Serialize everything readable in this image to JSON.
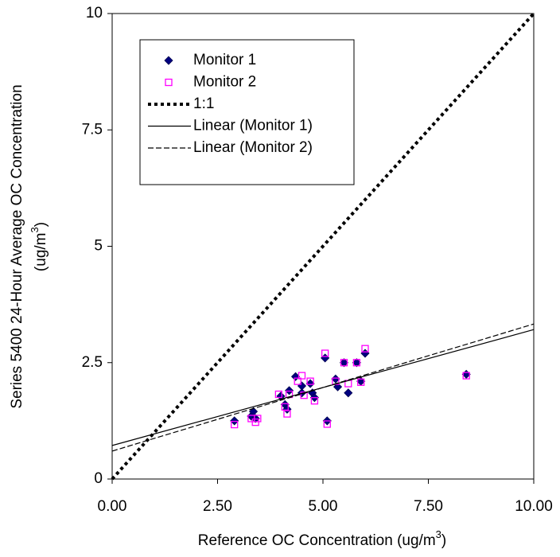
{
  "chart_data": {
    "type": "scatter",
    "x_label": [
      "Reference OC Concentration (ug/m",
      "3",
      ")"
    ],
    "y_label": [
      "Series 5400 24-Hour Average OC Concentration",
      "(ug/m",
      "3",
      ")"
    ],
    "xlim": [
      0,
      10
    ],
    "ylim": [
      0,
      10
    ],
    "xticks": [
      {
        "value": 0,
        "label": "0.00"
      },
      {
        "value": 2.5,
        "label": "2.50"
      },
      {
        "value": 5,
        "label": "5.00"
      },
      {
        "value": 7.5,
        "label": "7.50"
      },
      {
        "value": 10,
        "label": "10.00"
      }
    ],
    "yticks": [
      0,
      2.5,
      5,
      7.5,
      10
    ],
    "series": [
      {
        "name": "Monitor 1",
        "color": "#000080",
        "mark": "diamond",
        "x": [
          2.9,
          3.3,
          3.35,
          3.4,
          4.0,
          4.1,
          4.15,
          4.2,
          4.35,
          4.5,
          4.5,
          4.7,
          4.75,
          4.8,
          5.05,
          5.1,
          5.3,
          5.35,
          5.5,
          5.6,
          5.8,
          5.9,
          6.0,
          8.4
        ],
        "values": [
          1.25,
          1.35,
          1.45,
          1.3,
          1.78,
          1.6,
          1.5,
          1.9,
          2.2,
          2.0,
          1.85,
          2.05,
          1.85,
          1.75,
          2.6,
          1.25,
          2.15,
          1.98,
          2.5,
          1.85,
          2.5,
          2.1,
          2.7,
          2.25
        ]
      },
      {
        "name": "Monitor 2",
        "color": "#ff00ff",
        "mark": "square",
        "x": [
          2.9,
          3.3,
          3.4,
          3.45,
          3.95,
          4.1,
          4.15,
          4.2,
          4.4,
          4.5,
          4.55,
          4.7,
          4.8,
          5.05,
          5.1,
          5.3,
          5.5,
          5.6,
          5.8,
          5.9,
          6.0,
          8.4
        ],
        "values": [
          1.17,
          1.3,
          1.22,
          1.3,
          1.82,
          1.55,
          1.4,
          1.82,
          2.1,
          2.22,
          1.8,
          2.1,
          1.68,
          2.7,
          1.18,
          2.1,
          2.5,
          2.05,
          2.5,
          2.08,
          2.8,
          2.22
        ]
      },
      {
        "name": "1:1",
        "color": "#000000",
        "mark": "dotted",
        "x": [
          0,
          10
        ],
        "values": [
          0,
          10
        ]
      },
      {
        "name": "Linear (Monitor 1)",
        "color": "#000000",
        "mark": "solid",
        "x": [
          0,
          10
        ],
        "values": [
          0.72,
          3.21
        ]
      },
      {
        "name": "Linear (Monitor 2)",
        "color": "#000000",
        "mark": "dashed",
        "x": [
          0,
          10
        ],
        "values": [
          0.6,
          3.33
        ]
      }
    ]
  }
}
